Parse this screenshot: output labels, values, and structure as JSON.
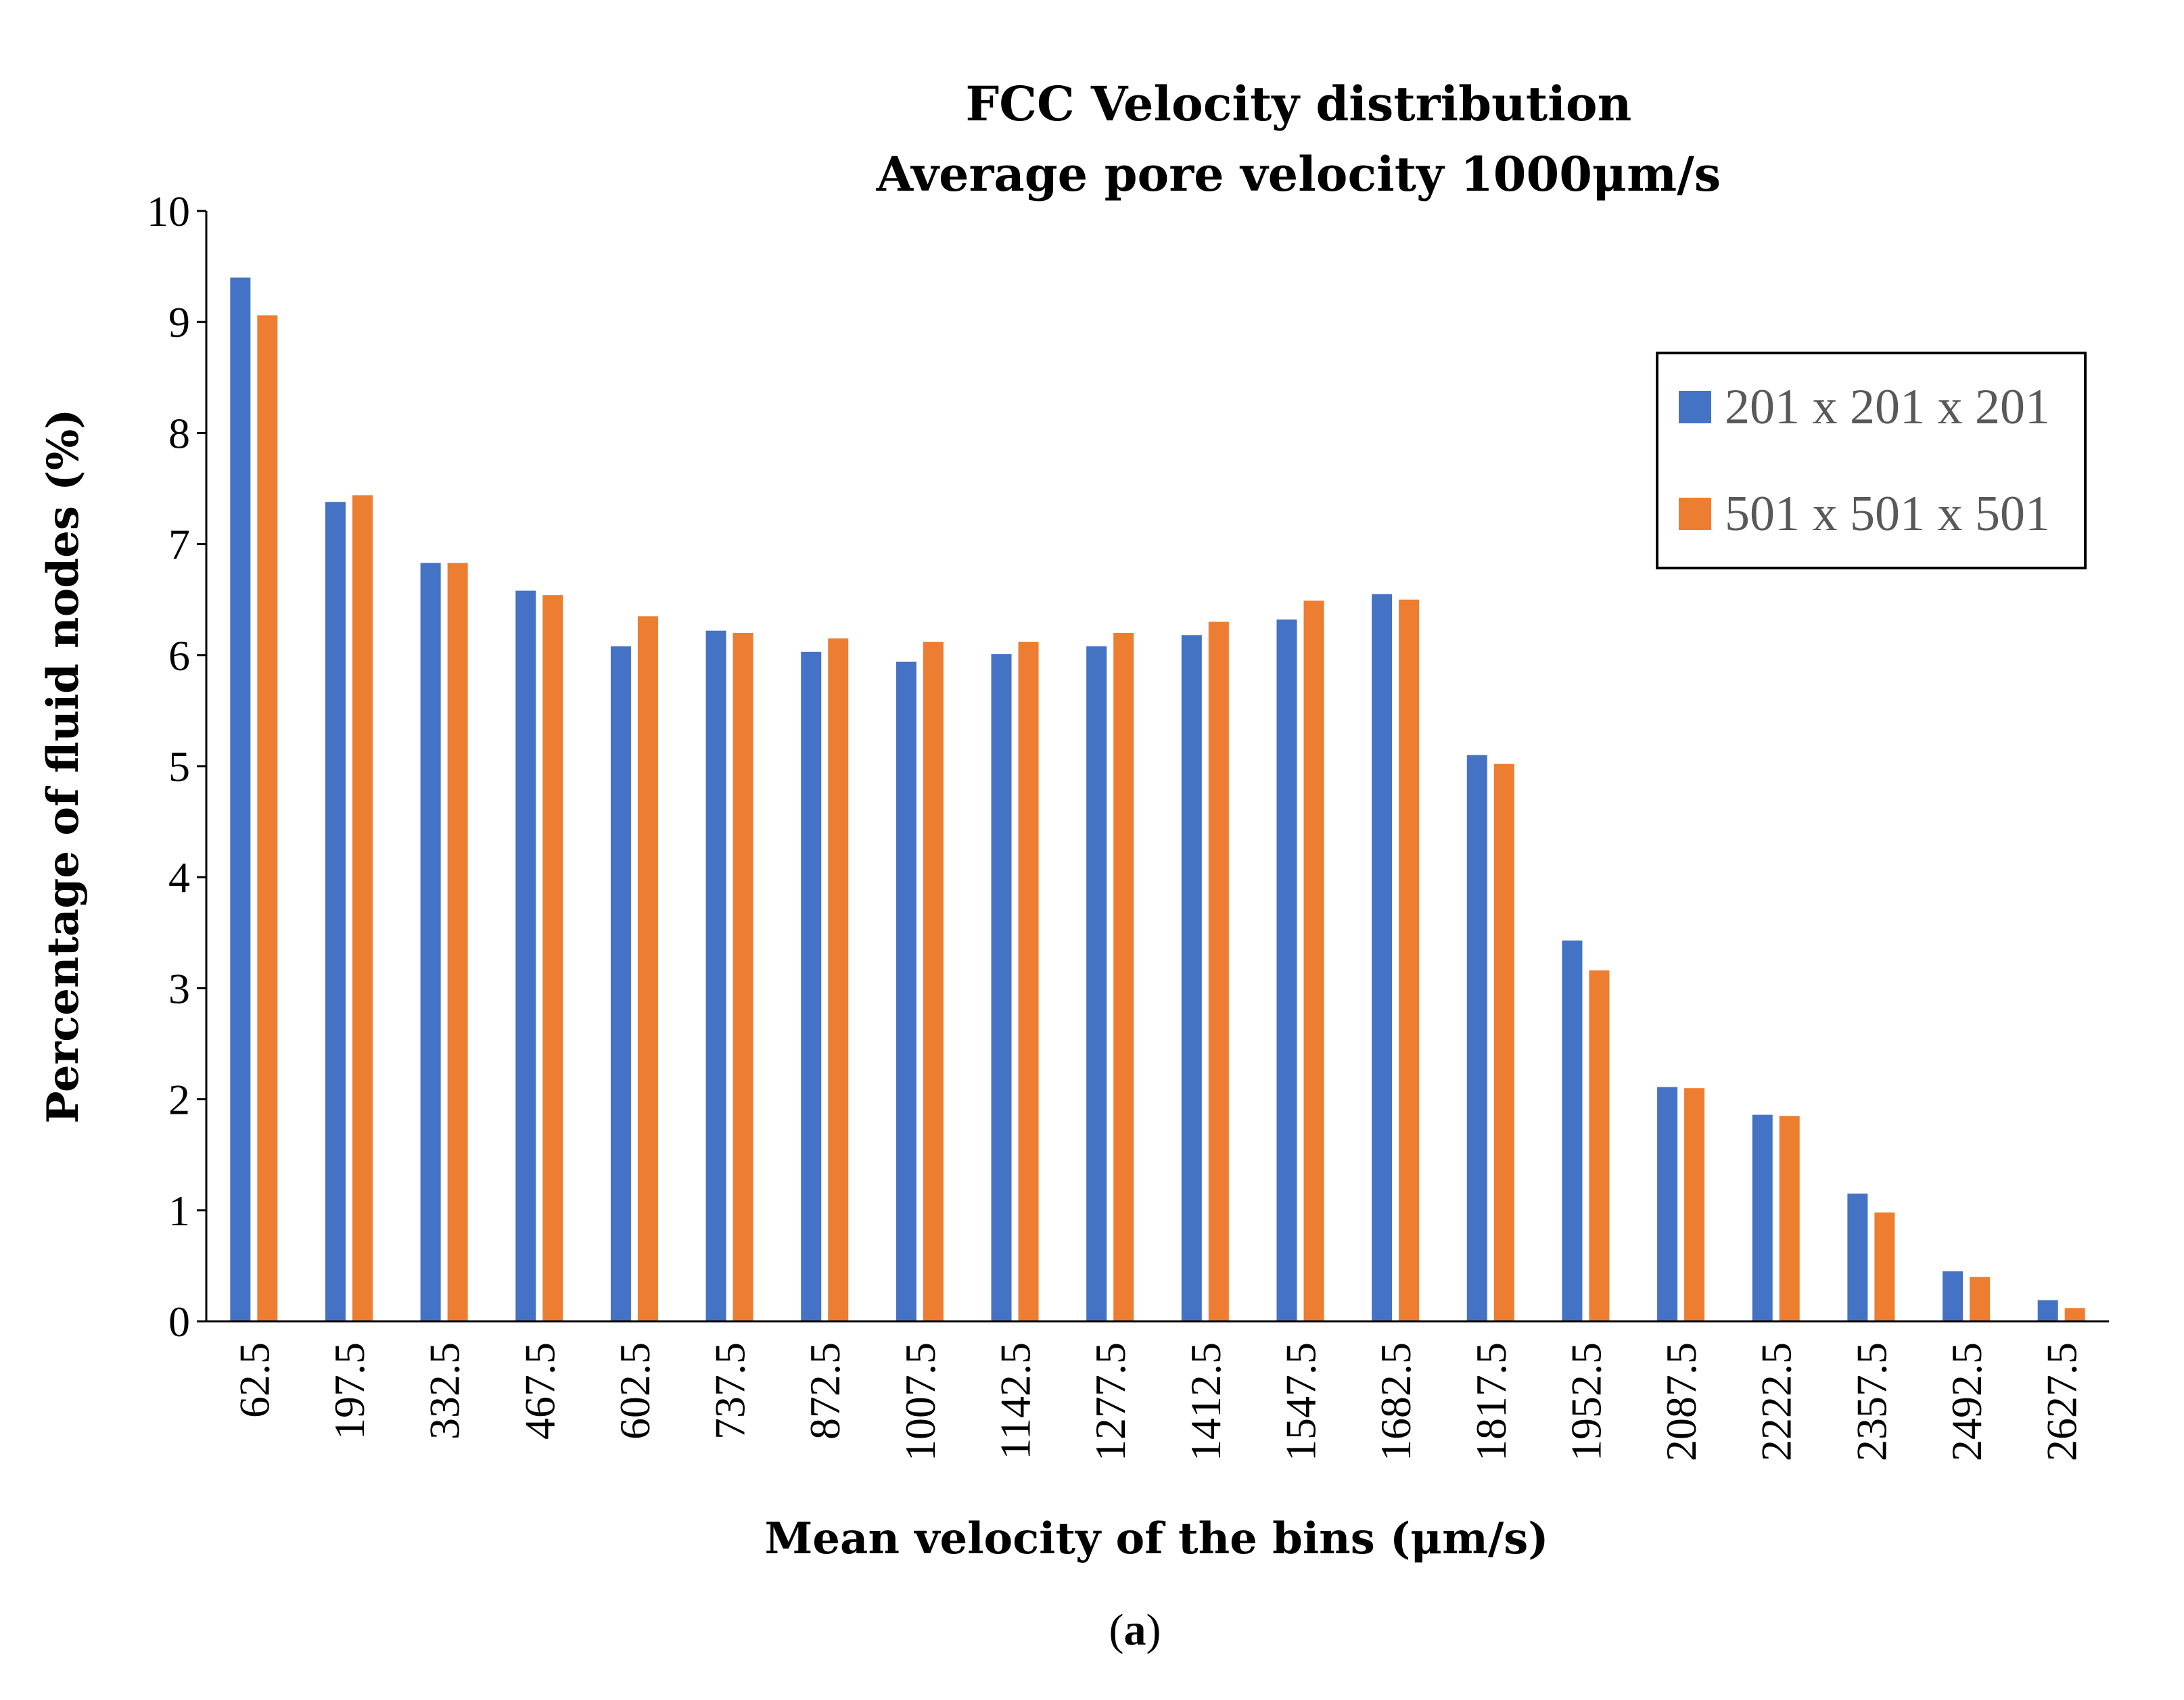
{
  "chart_data": {
    "type": "bar",
    "title": "FCC Velocity distribution",
    "subtitle": "Average pore velocity 1000μm/s",
    "xlabel": "Mean velocity of the bins (μm/s)",
    "ylabel": "Percentage of fluid nodes (%)",
    "ylim": [
      0,
      10
    ],
    "yticks": [
      "0",
      "1",
      "2",
      "3",
      "4",
      "5",
      "6",
      "7",
      "8",
      "9",
      "10"
    ],
    "grid": false,
    "legend_position": "top-right",
    "categories": [
      "62.5",
      "197.5",
      "332.5",
      "467.5",
      "602.5",
      "737.5",
      "872.5",
      "1007.5",
      "1142.5",
      "1277.5",
      "1412.5",
      "1547.5",
      "1682.5",
      "1817.5",
      "1952.5",
      "2087.5",
      "2222.5",
      "2357.5",
      "2492.5",
      "2627.5"
    ],
    "series": [
      {
        "name": "201 x 201 x 201",
        "color": "#4472C4",
        "values": [
          9.4,
          7.38,
          6.83,
          6.58,
          6.08,
          6.22,
          6.03,
          5.94,
          6.01,
          6.08,
          6.18,
          6.32,
          6.55,
          5.1,
          3.43,
          2.11,
          1.86,
          1.15,
          0.45,
          0.19
        ]
      },
      {
        "name": "501 x 501 x 501",
        "color": "#ED7D31",
        "values": [
          9.06,
          7.44,
          6.83,
          6.54,
          6.35,
          6.2,
          6.15,
          6.12,
          6.12,
          6.2,
          6.3,
          6.49,
          6.5,
          5.02,
          3.16,
          2.1,
          1.85,
          0.98,
          0.4,
          0.12
        ]
      }
    ]
  },
  "caption": {
    "open": "(",
    "letter": "a",
    "close": ")"
  }
}
